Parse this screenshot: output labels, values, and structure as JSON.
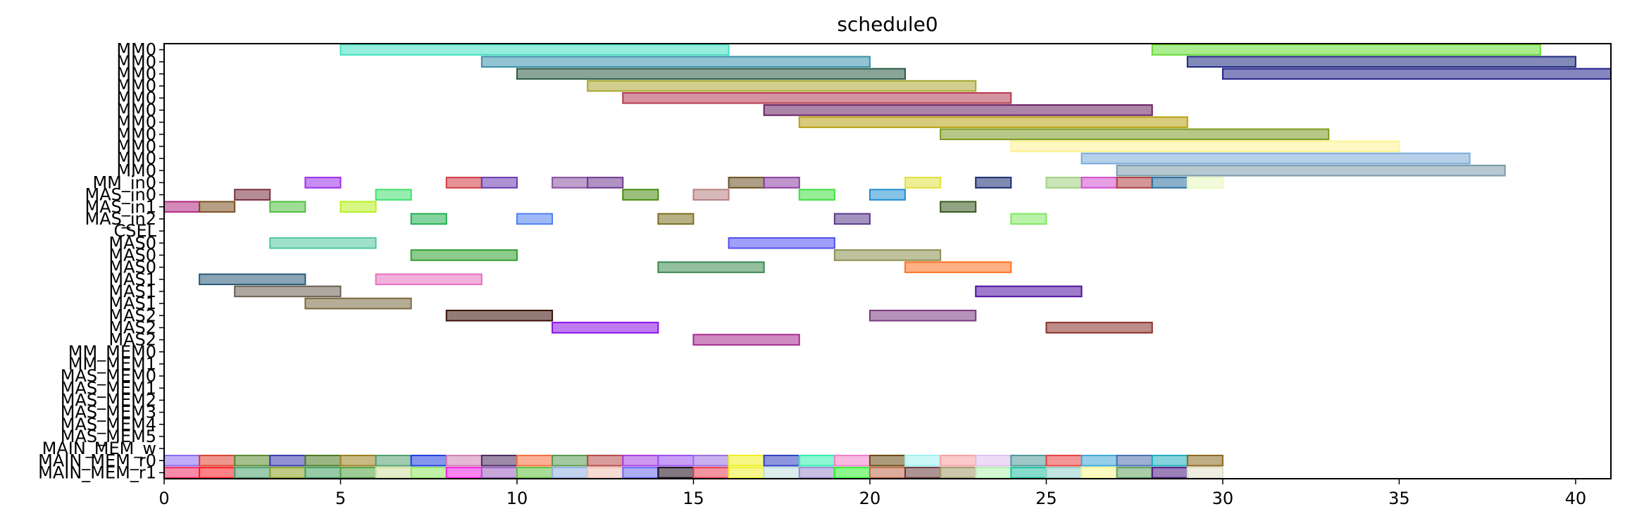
{
  "chart_data": {
    "type": "gantt",
    "title": "schedule0",
    "xlabel": "",
    "ylabel": "",
    "xlim": [
      0,
      41
    ],
    "x_ticks": [
      0,
      5,
      10,
      15,
      20,
      25,
      30,
      35,
      40
    ],
    "grid": false,
    "rows": [
      "MM0",
      "MM0",
      "MM0",
      "MM0",
      "MM0",
      "MM0",
      "MM0",
      "MM0",
      "MM0",
      "MM0",
      "MM0",
      "MM_in0",
      "MAS_in0",
      "MAS_in1",
      "MAS_in2",
      "CSEL",
      "MAS0",
      "MAS0",
      "MAS0",
      "MAS1",
      "MAS1",
      "MAS1",
      "MAS2",
      "MAS2",
      "MAS2",
      "MM_MEM0",
      "MM_MEM1",
      "MAS_MEM0",
      "MAS_MEM1",
      "MAS_MEM2",
      "MAS_MEM3",
      "MAS_MEM4",
      "MAS_MEM5",
      "MAIN_MEM_w",
      "MAIN_MEM_r0",
      "MAIN_MEM_r1"
    ],
    "tasks": [
      {
        "row": 0,
        "start": 5,
        "end": 16,
        "color": "#40e0c0"
      },
      {
        "row": 0,
        "start": 28,
        "end": 39,
        "color": "#66dd33"
      },
      {
        "row": 1,
        "start": 9,
        "end": 20,
        "color": "#3a90aa"
      },
      {
        "row": 1,
        "start": 29,
        "end": 40,
        "color": "#1e2a80"
      },
      {
        "row": 2,
        "start": 10,
        "end": 21,
        "color": "#2a5a44"
      },
      {
        "row": 2,
        "start": 30,
        "end": 41,
        "color": "#20208a"
      },
      {
        "row": 3,
        "start": 12,
        "end": 23,
        "color": "#a8a630"
      },
      {
        "row": 4,
        "start": 13,
        "end": 24,
        "color": "#b33a50"
      },
      {
        "row": 5,
        "start": 17,
        "end": 28,
        "color": "#6a2060"
      },
      {
        "row": 6,
        "start": 18,
        "end": 29,
        "color": "#b8a010"
      },
      {
        "row": 7,
        "start": 22,
        "end": 33,
        "color": "#7a9a20"
      },
      {
        "row": 8,
        "start": 24,
        "end": 35,
        "color": "#fff290"
      },
      {
        "row": 9,
        "start": 26,
        "end": 37,
        "color": "#7aaad8"
      },
      {
        "row": 10,
        "start": 27,
        "end": 38,
        "color": "#7a9aaa"
      },
      {
        "row": 11,
        "start": 4,
        "end": 5,
        "color": "#9a30e8"
      },
      {
        "row": 11,
        "start": 8,
        "end": 9,
        "color": "#d03a40"
      },
      {
        "row": 11,
        "start": 9,
        "end": 10,
        "color": "#6a3ab0"
      },
      {
        "row": 11,
        "start": 11,
        "end": 12,
        "color": "#8a50a0"
      },
      {
        "row": 11,
        "start": 12,
        "end": 13,
        "color": "#703a90"
      },
      {
        "row": 11,
        "start": 16,
        "end": 17,
        "color": "#6a5020"
      },
      {
        "row": 11,
        "start": 17,
        "end": 18,
        "color": "#8a40a0"
      },
      {
        "row": 11,
        "start": 21,
        "end": 22,
        "color": "#e0e040"
      },
      {
        "row": 11,
        "start": 23,
        "end": 24,
        "color": "#1a2a70"
      },
      {
        "row": 11,
        "start": 25,
        "end": 26,
        "color": "#a0d080"
      },
      {
        "row": 11,
        "start": 26,
        "end": 27,
        "color": "#d050d0"
      },
      {
        "row": 11,
        "start": 27,
        "end": 28,
        "color": "#b04040"
      },
      {
        "row": 11,
        "start": 28,
        "end": 29,
        "color": "#2a70a0"
      },
      {
        "row": 11,
        "start": 29,
        "end": 30,
        "color": "#e8f8c0"
      },
      {
        "row": 12,
        "start": 2,
        "end": 3,
        "color": "#7a3040"
      },
      {
        "row": 12,
        "start": 6,
        "end": 7,
        "color": "#40e070"
      },
      {
        "row": 12,
        "start": 13,
        "end": 14,
        "color": "#4a8a10"
      },
      {
        "row": 12,
        "start": 15,
        "end": 16,
        "color": "#b88080"
      },
      {
        "row": 12,
        "start": 18,
        "end": 19,
        "color": "#40e040"
      },
      {
        "row": 12,
        "start": 20,
        "end": 21,
        "color": "#2090d0"
      },
      {
        "row": 13,
        "start": 0,
        "end": 1,
        "color": "#b02a80"
      },
      {
        "row": 13,
        "start": 1,
        "end": 2,
        "color": "#7a5020"
      },
      {
        "row": 13,
        "start": 3,
        "end": 4,
        "color": "#50c040"
      },
      {
        "row": 13,
        "start": 5,
        "end": 6,
        "color": "#b8f020"
      },
      {
        "row": 13,
        "start": 22,
        "end": 23,
        "color": "#3a5a20"
      },
      {
        "row": 14,
        "start": 7,
        "end": 8,
        "color": "#20b050"
      },
      {
        "row": 14,
        "start": 10,
        "end": 11,
        "color": "#5080f0"
      },
      {
        "row": 14,
        "start": 14,
        "end": 15,
        "color": "#7a7020"
      },
      {
        "row": 14,
        "start": 19,
        "end": 20,
        "color": "#5a3a8a"
      },
      {
        "row": 14,
        "start": 24,
        "end": 25,
        "color": "#80e860"
      },
      {
        "row": 16,
        "start": 3,
        "end": 6,
        "color": "#50c8a0"
      },
      {
        "row": 16,
        "start": 16,
        "end": 19,
        "color": "#5050f0"
      },
      {
        "row": 17,
        "start": 7,
        "end": 10,
        "color": "#30a030"
      },
      {
        "row": 17,
        "start": 19,
        "end": 22,
        "color": "#8a9050"
      },
      {
        "row": 18,
        "start": 14,
        "end": 17,
        "color": "#3a8a50"
      },
      {
        "row": 18,
        "start": 21,
        "end": 24,
        "color": "#ff7020"
      },
      {
        "row": 19,
        "start": 1,
        "end": 4,
        "color": "#2a5a7a"
      },
      {
        "row": 19,
        "start": 6,
        "end": 9,
        "color": "#e870c0"
      },
      {
        "row": 20,
        "start": 2,
        "end": 5,
        "color": "#6a6050"
      },
      {
        "row": 20,
        "start": 23,
        "end": 26,
        "color": "#5010a0"
      },
      {
        "row": 21,
        "start": 4,
        "end": 7,
        "color": "#7a6a40"
      },
      {
        "row": 22,
        "start": 8,
        "end": 11,
        "color": "#3a1008"
      },
      {
        "row": 22,
        "start": 20,
        "end": 23,
        "color": "#7a3a80"
      },
      {
        "row": 23,
        "start": 11,
        "end": 14,
        "color": "#8a10e8"
      },
      {
        "row": 23,
        "start": 25,
        "end": 28,
        "color": "#8a3028"
      },
      {
        "row": 24,
        "start": 15,
        "end": 18,
        "color": "#a82a90"
      },
      {
        "row": 34,
        "start": 0,
        "end": 1,
        "color": "#8a6af0"
      },
      {
        "row": 34,
        "start": 1,
        "end": 2,
        "color": "#e04030"
      },
      {
        "row": 34,
        "start": 2,
        "end": 3,
        "color": "#5a8a30"
      },
      {
        "row": 34,
        "start": 3,
        "end": 4,
        "color": "#3a3ab0"
      },
      {
        "row": 34,
        "start": 4,
        "end": 5,
        "color": "#4a7a20"
      },
      {
        "row": 34,
        "start": 5,
        "end": 6,
        "color": "#9a8020"
      },
      {
        "row": 34,
        "start": 6,
        "end": 7,
        "color": "#50a070"
      },
      {
        "row": 34,
        "start": 7,
        "end": 8,
        "color": "#2040e0"
      },
      {
        "row": 34,
        "start": 8,
        "end": 9,
        "color": "#d080b0"
      },
      {
        "row": 34,
        "start": 9,
        "end": 10,
        "color": "#4a2a60"
      },
      {
        "row": 34,
        "start": 10,
        "end": 11,
        "color": "#f87040"
      },
      {
        "row": 34,
        "start": 11,
        "end": 12,
        "color": "#5a9a50"
      },
      {
        "row": 34,
        "start": 12,
        "end": 13,
        "color": "#b84a4a"
      },
      {
        "row": 34,
        "start": 13,
        "end": 14,
        "color": "#a840e0"
      },
      {
        "row": 34,
        "start": 14,
        "end": 15,
        "color": "#9a50f0"
      },
      {
        "row": 34,
        "start": 15,
        "end": 16,
        "color": "#9a70e0"
      },
      {
        "row": 34,
        "start": 16,
        "end": 17,
        "color": "#f0f020"
      },
      {
        "row": 34,
        "start": 17,
        "end": 18,
        "color": "#3040c0"
      },
      {
        "row": 34,
        "start": 18,
        "end": 19,
        "color": "#30f0b0"
      },
      {
        "row": 34,
        "start": 19,
        "end": 20,
        "color": "#f080c8"
      },
      {
        "row": 34,
        "start": 20,
        "end": 21,
        "color": "#6a4a10"
      },
      {
        "row": 34,
        "start": 21,
        "end": 22,
        "color": "#a0f0f0"
      },
      {
        "row": 34,
        "start": 22,
        "end": 23,
        "color": "#f8a0a0"
      },
      {
        "row": 34,
        "start": 23,
        "end": 24,
        "color": "#e0c0f0"
      },
      {
        "row": 34,
        "start": 24,
        "end": 25,
        "color": "#509a9a"
      },
      {
        "row": 34,
        "start": 25,
        "end": 26,
        "color": "#e84040"
      },
      {
        "row": 34,
        "start": 26,
        "end": 27,
        "color": "#40a8d8"
      },
      {
        "row": 34,
        "start": 27,
        "end": 28,
        "color": "#4a70b0"
      },
      {
        "row": 34,
        "start": 28,
        "end": 29,
        "color": "#20b0c0"
      },
      {
        "row": 34,
        "start": 29,
        "end": 30,
        "color": "#8a6a20"
      },
      {
        "row": 35,
        "start": 0,
        "end": 1,
        "color": "#f02a60"
      },
      {
        "row": 35,
        "start": 1,
        "end": 2,
        "color": "#ff1a20"
      },
      {
        "row": 35,
        "start": 2,
        "end": 3,
        "color": "#4aa070"
      },
      {
        "row": 35,
        "start": 3,
        "end": 4,
        "color": "#8aa020"
      },
      {
        "row": 35,
        "start": 4,
        "end": 5,
        "color": "#40a060"
      },
      {
        "row": 35,
        "start": 5,
        "end": 6,
        "color": "#50a040"
      },
      {
        "row": 35,
        "start": 6,
        "end": 7,
        "color": "#d0e0a0"
      },
      {
        "row": 35,
        "start": 7,
        "end": 8,
        "color": "#90e860"
      },
      {
        "row": 35,
        "start": 8,
        "end": 9,
        "color": "#f020e0"
      },
      {
        "row": 35,
        "start": 9,
        "end": 10,
        "color": "#9a60c0"
      },
      {
        "row": 35,
        "start": 10,
        "end": 11,
        "color": "#60c040"
      },
      {
        "row": 35,
        "start": 11,
        "end": 12,
        "color": "#90b0e0"
      },
      {
        "row": 35,
        "start": 12,
        "end": 13,
        "color": "#f0c0b0"
      },
      {
        "row": 35,
        "start": 13,
        "end": 14,
        "color": "#6a6af0"
      },
      {
        "row": 35,
        "start": 14,
        "end": 15,
        "color": "#1a0a1a"
      },
      {
        "row": 35,
        "start": 15,
        "end": 16,
        "color": "#e83a50"
      },
      {
        "row": 35,
        "start": 16,
        "end": 17,
        "color": "#f0f030"
      },
      {
        "row": 35,
        "start": 17,
        "end": 18,
        "color": "#c0e0e0"
      },
      {
        "row": 35,
        "start": 18,
        "end": 19,
        "color": "#9a8ad0"
      },
      {
        "row": 35,
        "start": 19,
        "end": 20,
        "color": "#30f030"
      },
      {
        "row": 35,
        "start": 20,
        "end": 21,
        "color": "#c06a4a"
      },
      {
        "row": 35,
        "start": 21,
        "end": 22,
        "color": "#6a3a3a"
      },
      {
        "row": 35,
        "start": 22,
        "end": 23,
        "color": "#a09a6a"
      },
      {
        "row": 35,
        "start": 23,
        "end": 24,
        "color": "#b0f0b0"
      },
      {
        "row": 35,
        "start": 24,
        "end": 25,
        "color": "#20c0a0"
      },
      {
        "row": 35,
        "start": 25,
        "end": 26,
        "color": "#90d0c8"
      },
      {
        "row": 35,
        "start": 26,
        "end": 27,
        "color": "#f8f890"
      },
      {
        "row": 35,
        "start": 27,
        "end": 28,
        "color": "#60a060"
      },
      {
        "row": 35,
        "start": 28,
        "end": 29,
        "color": "#4a1a80"
      },
      {
        "row": 35,
        "start": 29,
        "end": 30,
        "color": "#e0e0c8"
      }
    ]
  }
}
